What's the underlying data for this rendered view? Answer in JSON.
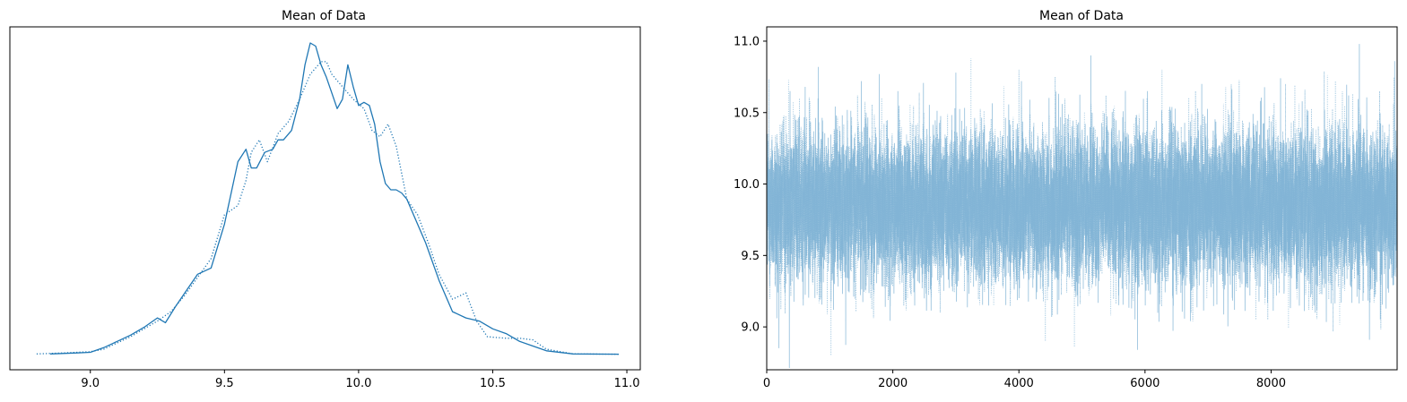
{
  "chart_data": [
    {
      "type": "line",
      "title": "Mean of Data",
      "xlabel": "",
      "ylabel": "",
      "xlim": [
        8.7,
        11.05
      ],
      "xticks": [
        9.0,
        9.5,
        10.0,
        10.5,
        11.0
      ],
      "xtick_labels": [
        "9.0",
        "9.5",
        "10.0",
        "10.5",
        "11.0"
      ],
      "yticks": [],
      "grid": false,
      "color": "#1f77b4",
      "series": [
        {
          "style": "solid",
          "x": [
            8.85,
            8.95,
            9.0,
            9.05,
            9.1,
            9.15,
            9.2,
            9.25,
            9.28,
            9.32,
            9.36,
            9.4,
            9.45,
            9.5,
            9.55,
            9.58,
            9.6,
            9.62,
            9.65,
            9.68,
            9.7,
            9.72,
            9.75,
            9.78,
            9.8,
            9.82,
            9.84,
            9.86,
            9.88,
            9.9,
            9.92,
            9.94,
            9.96,
            9.98,
            10.0,
            10.02,
            10.04,
            10.06,
            10.08,
            10.1,
            10.12,
            10.14,
            10.16,
            10.18,
            10.2,
            10.25,
            10.3,
            10.35,
            10.4,
            10.45,
            10.5,
            10.55,
            10.6,
            10.65,
            10.7,
            10.8,
            10.97
          ],
          "y": [
            0.005,
            0.008,
            0.01,
            0.025,
            0.045,
            0.065,
            0.09,
            0.12,
            0.105,
            0.16,
            0.21,
            0.26,
            0.28,
            0.42,
            0.62,
            0.66,
            0.6,
            0.6,
            0.65,
            0.66,
            0.69,
            0.69,
            0.72,
            0.82,
            0.93,
            1.0,
            0.99,
            0.93,
            0.89,
            0.84,
            0.79,
            0.82,
            0.93,
            0.86,
            0.8,
            0.81,
            0.8,
            0.74,
            0.62,
            0.55,
            0.53,
            0.53,
            0.52,
            0.5,
            0.46,
            0.36,
            0.24,
            0.14,
            0.12,
            0.11,
            0.085,
            0.07,
            0.045,
            0.03,
            0.015,
            0.005,
            0.004
          ]
        },
        {
          "style": "dotted",
          "x": [
            8.8,
            8.9,
            9.0,
            9.05,
            9.1,
            9.15,
            9.2,
            9.25,
            9.3,
            9.35,
            9.4,
            9.45,
            9.5,
            9.55,
            9.58,
            9.6,
            9.63,
            9.66,
            9.7,
            9.74,
            9.78,
            9.82,
            9.86,
            9.88,
            9.9,
            9.94,
            9.98,
            10.02,
            10.05,
            10.08,
            10.11,
            10.14,
            10.18,
            10.22,
            10.26,
            10.3,
            10.35,
            10.4,
            10.44,
            10.48,
            10.55,
            10.6,
            10.65,
            10.7,
            10.8,
            10.97
          ],
          "y": [
            0.005,
            0.008,
            0.012,
            0.02,
            0.04,
            0.06,
            0.085,
            0.11,
            0.14,
            0.19,
            0.25,
            0.31,
            0.45,
            0.48,
            0.56,
            0.65,
            0.69,
            0.62,
            0.71,
            0.75,
            0.82,
            0.9,
            0.94,
            0.94,
            0.9,
            0.86,
            0.82,
            0.79,
            0.72,
            0.7,
            0.74,
            0.67,
            0.5,
            0.45,
            0.36,
            0.26,
            0.18,
            0.2,
            0.11,
            0.06,
            0.055,
            0.055,
            0.05,
            0.02,
            0.005,
            0.004
          ]
        }
      ]
    },
    {
      "type": "line",
      "title": "Mean of Data",
      "xlabel": "",
      "ylabel": "",
      "xlim": [
        0,
        9999
      ],
      "ylim": [
        8.7,
        11.1
      ],
      "xticks": [
        0,
        2000,
        4000,
        6000,
        8000
      ],
      "xtick_labels": [
        "0",
        "2000",
        "4000",
        "6000",
        "8000"
      ],
      "yticks": [
        9.0,
        9.5,
        10.0,
        10.5,
        11.0
      ],
      "ytick_labels": [
        "9.0",
        "9.5",
        "10.0",
        "10.5",
        "11.0"
      ],
      "grid": false,
      "color": "#7fb3d5",
      "n_draws": 10000,
      "series": [
        {
          "style": "solid",
          "mean": 9.85,
          "sd": 0.25,
          "x_extremes": [
            10,
            160,
            370,
            580,
            610,
            820,
            1060,
            1500,
            1880,
            2080,
            2500,
            3000,
            3520,
            4040,
            4520,
            5140,
            5580,
            5880,
            6040,
            6440,
            6900,
            7420,
            8150,
            8700,
            9230,
            9400,
            9560,
            9960
          ],
          "y_extremes": [
            10.35,
            9.06,
            10.65,
            9.15,
            10.68,
            10.82,
            9.12,
            10.72,
            9.14,
            10.65,
            9.2,
            10.78,
            9.15,
            10.72,
            9.07,
            10.9,
            9.22,
            8.84,
            10.65,
            9.2,
            10.7,
            9.12,
            10.74,
            9.1,
            10.62,
            10.98,
            8.91,
            10.86
          ]
        },
        {
          "style": "dotted",
          "mean": 9.85,
          "sd": 0.25,
          "x_extremes": [
            60,
            210,
            520,
            1020,
            1440,
            1650,
            2100,
            2750,
            3240,
            3600,
            4000,
            4420,
            4880,
            5380,
            5800,
            6270,
            6730,
            7280,
            7760,
            8230,
            8600,
            9020,
            9560,
            9720
          ],
          "y_extremes": [
            10.25,
            9.3,
            10.6,
            8.8,
            10.62,
            9.2,
            10.55,
            9.1,
            10.88,
            9.15,
            10.8,
            8.9,
            8.86,
            10.62,
            9.2,
            10.8,
            9.1,
            10.68,
            9.05,
            10.7,
            9.12,
            10.72,
            9.25,
            10.65
          ]
        }
      ]
    }
  ]
}
